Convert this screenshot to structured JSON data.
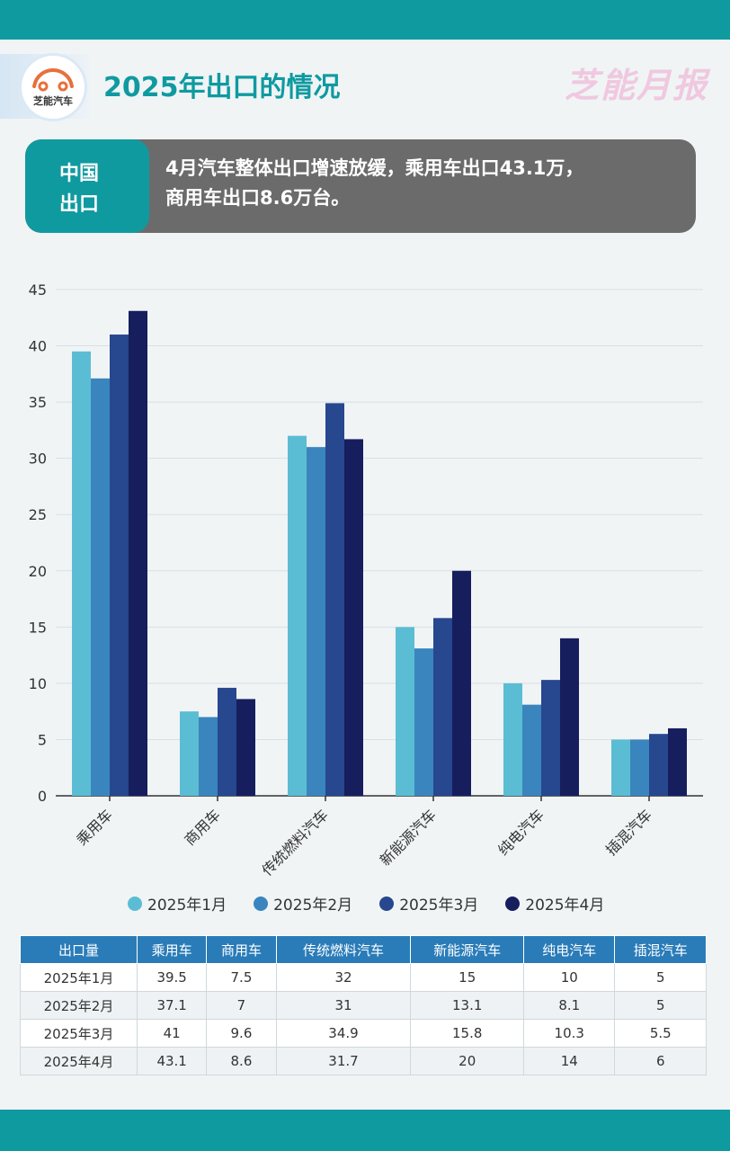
{
  "header": {
    "title": "2025年出口的情况",
    "logo_text": "芝能汽车",
    "brand": "芝能月报"
  },
  "banner": {
    "tag_line1": "中国",
    "tag_line2": "出口",
    "text_line1": "4月汽车整体出口增速放缓，乘用车出口43.1万，",
    "text_line2": "商用车出口8.6万台。"
  },
  "colors": {
    "accent": "#0f9aa0",
    "series": [
      "#5bbdd4",
      "#3a85be",
      "#27478f",
      "#161e5e"
    ]
  },
  "chart_data": {
    "type": "bar",
    "categories": [
      "乘用车",
      "商用车",
      "传统燃料汽车",
      "新能源汽车",
      "纯电汽车",
      "插混汽车"
    ],
    "series": [
      {
        "name": "2025年1月",
        "values": [
          39.5,
          7.5,
          32,
          15,
          10,
          5
        ]
      },
      {
        "name": "2025年2月",
        "values": [
          37.1,
          7,
          31,
          13.1,
          8.1,
          5
        ]
      },
      {
        "name": "2025年3月",
        "values": [
          41,
          9.6,
          34.9,
          15.8,
          10.3,
          5.5
        ]
      },
      {
        "name": "2025年4月",
        "values": [
          43.1,
          8.6,
          31.7,
          20,
          14,
          6
        ]
      }
    ],
    "ylim": [
      0,
      45
    ],
    "yticks": [
      "0",
      "5",
      "10",
      "15",
      "20",
      "25",
      "30",
      "35",
      "40",
      "45"
    ],
    "grid": true,
    "legend": "bottom"
  },
  "table": {
    "corner": "出口量",
    "columns": [
      "乘用车",
      "商用车",
      "传统燃料汽车",
      "新能源汽车",
      "纯电汽车",
      "插混汽车"
    ],
    "rows": [
      {
        "label": "2025年1月",
        "cells": [
          "39.5",
          "7.5",
          "32",
          "15",
          "10",
          "5"
        ]
      },
      {
        "label": "2025年2月",
        "cells": [
          "37.1",
          "7",
          "31",
          "13.1",
          "8.1",
          "5"
        ]
      },
      {
        "label": "2025年3月",
        "cells": [
          "41",
          "9.6",
          "34.9",
          "15.8",
          "10.3",
          "5.5"
        ]
      },
      {
        "label": "2025年4月",
        "cells": [
          "43.1",
          "8.6",
          "31.7",
          "20",
          "14",
          "6"
        ]
      }
    ]
  }
}
